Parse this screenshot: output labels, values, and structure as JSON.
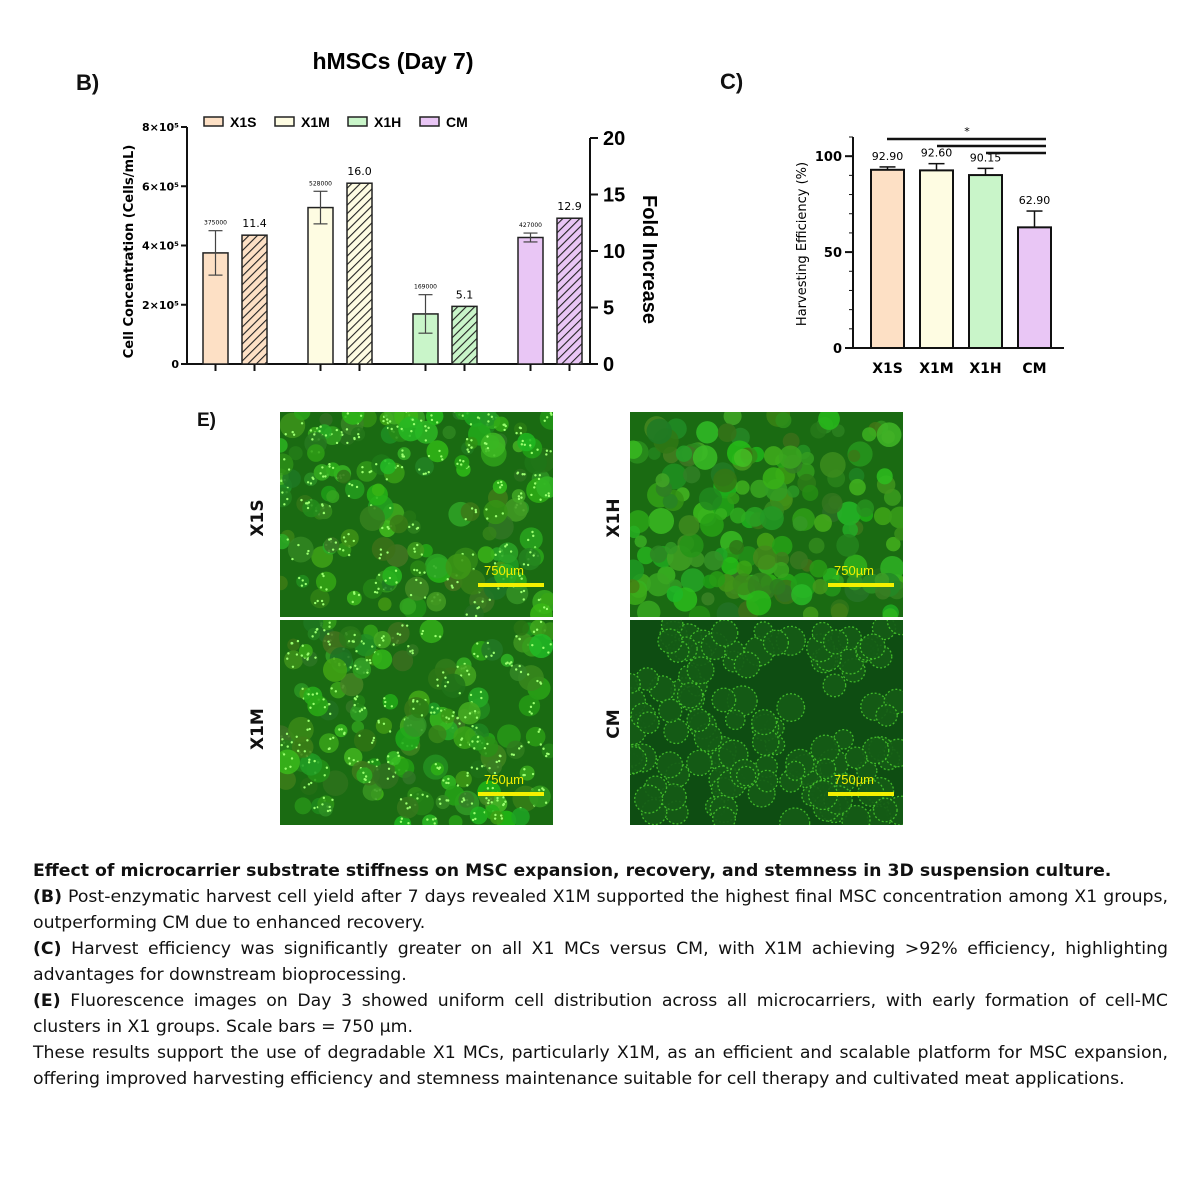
{
  "panel_b": {
    "letter": "B)",
    "chart_data": {
      "type": "bar",
      "title": "hMSCs (Day 7)",
      "categories": [
        "X1S",
        "X1M",
        "X1H",
        "CM"
      ],
      "ylabel": "Cell Concentration (Cells/mL)",
      "y2label": "Fold Increase",
      "ylim": [
        0,
        800000
      ],
      "y2lim": [
        0,
        20
      ],
      "yticks": [
        "0",
        "2×10⁵",
        "4×10⁵",
        "6×10⁵",
        "8×10⁵"
      ],
      "y2ticks": [
        "0",
        "5",
        "10",
        "15",
        "20"
      ],
      "series": [
        {
          "name": "Cell Concentration",
          "axis": "left",
          "values": [
            375000,
            528000,
            169000,
            427000
          ],
          "errors": [
            75000,
            55000,
            65000,
            15000
          ],
          "labels": [
            "375000",
            "528000",
            "169000",
            "427000"
          ]
        },
        {
          "name": "Fold Increase",
          "axis": "right",
          "pattern": "hatched",
          "values": [
            11.4,
            16.0,
            5.1,
            12.9
          ],
          "labels": [
            "11.4",
            "16.0",
            "5.1",
            "12.9"
          ]
        }
      ],
      "legend": {
        "position": "top",
        "items": [
          {
            "label": "X1S",
            "color": "#fde0c5"
          },
          {
            "label": "X1M",
            "color": "#fefce2"
          },
          {
            "label": "X1H",
            "color": "#c9f5c9"
          },
          {
            "label": "CM",
            "color": "#e9c6f5"
          }
        ]
      },
      "colors": [
        "#fde0c5",
        "#fefce2",
        "#c9f5c9",
        "#e9c6f5"
      ]
    }
  },
  "panel_c": {
    "letter": "C)",
    "chart_data": {
      "type": "bar",
      "categories": [
        "X1S",
        "X1M",
        "X1H",
        "CM"
      ],
      "values": [
        92.9,
        92.6,
        90.15,
        62.9
      ],
      "errors": [
        1.5,
        3.5,
        3.5,
        8.5
      ],
      "labels": [
        "92.90",
        "92.60",
        "90.15",
        "62.90"
      ],
      "ylabel": "Harvesting Efficiency (%)",
      "ylim": [
        0,
        110
      ],
      "yticks": [
        "0",
        "50",
        "100"
      ],
      "significance": "*",
      "colors": [
        "#fde0c5",
        "#fefce2",
        "#c9f5c9",
        "#e9c6f5"
      ]
    }
  },
  "panel_e": {
    "letter": "E)",
    "scale_label": "750µm",
    "images": [
      {
        "label": "X1S",
        "style": "clusters"
      },
      {
        "label": "X1H",
        "style": "dense"
      },
      {
        "label": "X1M",
        "style": "clusters"
      },
      {
        "label": "CM",
        "style": "rings"
      }
    ]
  },
  "caption": {
    "title": "Effect of microcarrier substrate stiffness on MSC expansion, recovery, and stemness in 3D suspension culture.",
    "b_label": "(B)",
    "b_text": " Post-enzymatic harvest cell yield after 7 days revealed X1M supported the highest final MSC concentration among X1 groups, outperforming CM due to enhanced recovery.",
    "c_label": "(C)",
    "c_text": " Harvest efficiency was significantly greater on all X1 MCs versus CM, with X1M achieving >92% efficiency, highlighting advantages for downstream bioprocessing.",
    "e_label": "(E)",
    "e_text": " Fluorescence images on Day 3 showed uniform cell distribution across all microcarriers, with early formation of cell-MC clusters in X1 groups. Scale bars = 750 µm.",
    "conclusion": "These results support the use of degradable X1 MCs, particularly X1M, as an efficient and scalable platform for MSC expansion, offering improved harvesting efficiency and stemness maintenance suitable for cell therapy and cultivated meat applications."
  }
}
